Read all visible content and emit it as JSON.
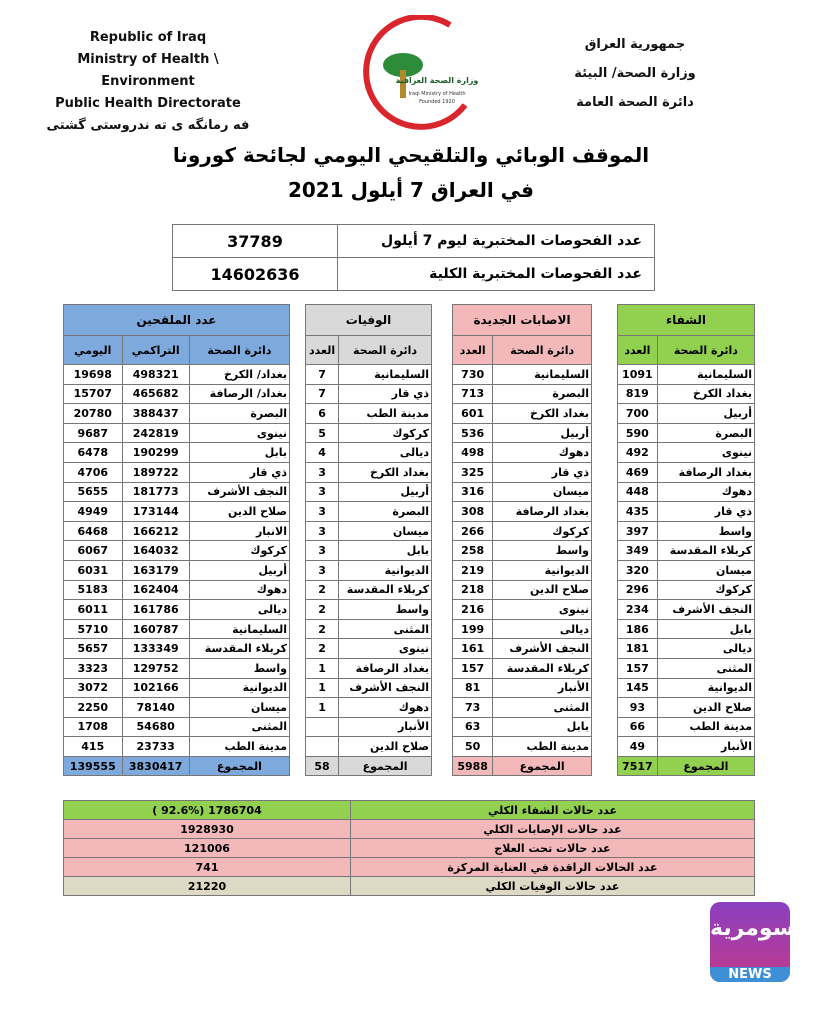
{
  "header": {
    "left": [
      "Republic of Iraq",
      "Ministry of Health \\ Environment",
      "Public Health Directorate",
      "فه رمانگه ی ته ندروستی گشتی"
    ],
    "right": [
      "جمهورية العراق",
      "وزارة الصحة/ البيئة",
      "دائرة الصحة العامة"
    ],
    "logo": [
      "وزارة الصحة العراقية",
      "Iraqi Ministry of Health",
      "Founded 1920"
    ]
  },
  "title": [
    "الموقف الوبائي والتلقيحي اليومي لجائحة كورونا",
    "في العراق  7  أيلول 2021"
  ],
  "tests": {
    "rows": [
      [
        "عدد الفحوصات المختبرية  ليوم 7 أيلول",
        "37789"
      ],
      [
        "عدد الفحوصات المختبرية الكلية",
        "14602636"
      ]
    ]
  },
  "panels": [
    {
      "title": "الشفاء",
      "headers": [
        "دائرة الصحة",
        "العدد"
      ],
      "rows": [
        [
          "السليمانية",
          1091
        ],
        [
          "بغداد الكرخ",
          819
        ],
        [
          "أربيل",
          700
        ],
        [
          "البصرة",
          590
        ],
        [
          "نينوى",
          492
        ],
        [
          "بغداد الرصافة",
          469
        ],
        [
          "دهوك",
          448
        ],
        [
          "ذي قار",
          435
        ],
        [
          "واسط",
          397
        ],
        [
          "كربلاء المقدسة",
          349
        ],
        [
          "ميسان",
          320
        ],
        [
          "كركوك",
          296
        ],
        [
          "النجف الأشرف",
          234
        ],
        [
          "بابل",
          186
        ],
        [
          "ديالى",
          181
        ],
        [
          "المثنى",
          157
        ],
        [
          "الديوانية",
          145
        ],
        [
          "صلاح الدين",
          93
        ],
        [
          "مدينة الطب",
          66
        ],
        [
          "الأنبار",
          49
        ]
      ],
      "total": [
        "المجموع",
        7517
      ]
    },
    {
      "title": "الاصابات الجديدة",
      "headers": [
        "دائرة الصحة",
        "العدد"
      ],
      "rows": [
        [
          "السليمانية",
          730
        ],
        [
          "البصرة",
          713
        ],
        [
          "بغداد الكرخ",
          601
        ],
        [
          "أربيل",
          536
        ],
        [
          "دهوك",
          498
        ],
        [
          "ذي قار",
          325
        ],
        [
          "ميسان",
          316
        ],
        [
          "بغداد الرصافة",
          308
        ],
        [
          "كركوك",
          266
        ],
        [
          "واسط",
          258
        ],
        [
          "الديوانية",
          219
        ],
        [
          "صلاح الدين",
          218
        ],
        [
          "نينوى",
          216
        ],
        [
          "ديالى",
          199
        ],
        [
          "النجف الأشرف",
          161
        ],
        [
          "كربلاء المقدسة",
          157
        ],
        [
          "الأنبار",
          81
        ],
        [
          "المثنى",
          73
        ],
        [
          "بابل",
          63
        ],
        [
          "مدينة الطب",
          50
        ]
      ],
      "total": [
        "المجموع",
        5988
      ]
    },
    {
      "title": "الوفيات",
      "headers": [
        "دائرة الصحة",
        "العدد"
      ],
      "rows": [
        [
          "السليمانية",
          7
        ],
        [
          "ذي قار",
          7
        ],
        [
          "مدينة الطب",
          6
        ],
        [
          "كركوك",
          5
        ],
        [
          "ديالى",
          4
        ],
        [
          "بغداد الكرخ",
          3
        ],
        [
          "أربيل",
          3
        ],
        [
          "البصرة",
          3
        ],
        [
          "ميسان",
          3
        ],
        [
          "بابل",
          3
        ],
        [
          "الديوانية",
          3
        ],
        [
          "كربلاء المقدسة",
          2
        ],
        [
          "واسط",
          2
        ],
        [
          "المثنى",
          2
        ],
        [
          "نينوى",
          2
        ],
        [
          "بغداد الرصافة",
          1
        ],
        [
          "النجف الأشرف",
          1
        ],
        [
          "دهوك",
          1
        ],
        [
          "الأنبار",
          null
        ],
        [
          "صلاح الدين",
          null
        ]
      ],
      "total": [
        "المجموع",
        58
      ]
    },
    {
      "title": "عدد الملقحين",
      "headers": [
        "دائرة الصحة",
        "التراكمي",
        "اليومي"
      ],
      "rows": [
        [
          "بغداد/ الكرخ",
          498321,
          19698
        ],
        [
          "بغداد/ الرصافة",
          465682,
          15707
        ],
        [
          "البصرة",
          388437,
          20780
        ],
        [
          "نينوى",
          242819,
          9687
        ],
        [
          "بابل",
          190299,
          6478
        ],
        [
          "ذي قار",
          189722,
          4706
        ],
        [
          "النجف الأشرف",
          181773,
          5655
        ],
        [
          "صلاح الدين",
          173144,
          4949
        ],
        [
          "الانبار",
          166212,
          6468
        ],
        [
          "كركوك",
          164032,
          6067
        ],
        [
          "أربيل",
          163179,
          6031
        ],
        [
          "دهوك",
          162404,
          5183
        ],
        [
          "ديالى",
          161786,
          6011
        ],
        [
          "السليمانية",
          160787,
          5710
        ],
        [
          "كربلاء المقدسة",
          133349,
          5657
        ],
        [
          "واسط",
          129752,
          3323
        ],
        [
          "الديوانية",
          102166,
          3072
        ],
        [
          "ميسان",
          78140,
          2250
        ],
        [
          "المثنى",
          54680,
          1708
        ],
        [
          "مدينة الطب",
          23733,
          415
        ]
      ],
      "total": [
        "المجموع",
        3830417,
        139555
      ]
    }
  ],
  "summary": {
    "rows": [
      [
        "عدد حالات الشفاء الكلي",
        "( 92.6%)    1786704"
      ],
      [
        "عدد حالات الإصابات الكلي",
        "1928930"
      ],
      [
        "عدد حالات تحت العلاج",
        "121006"
      ],
      [
        "عدد الحالات الراقدة في العناية المركزة",
        "741"
      ],
      [
        "عدد حالات الوفيات الكلي",
        "21220"
      ]
    ]
  },
  "watermark": {
    "brand": "السومرية",
    "label": "NEWS"
  }
}
